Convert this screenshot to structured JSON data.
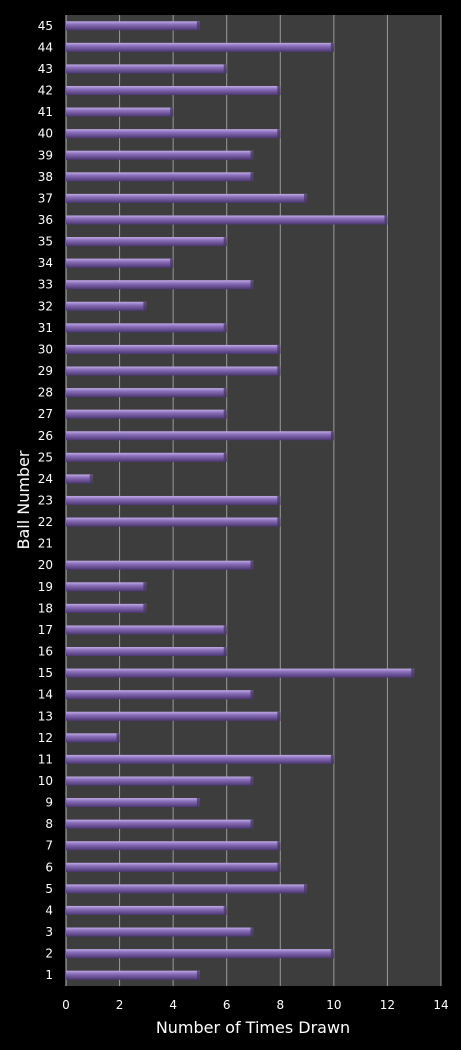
{
  "chart_data": {
    "type": "bar",
    "orientation": "horizontal",
    "xlabel": "Number of Times Drawn",
    "ylabel": "Ball Number",
    "xlim": [
      0,
      14
    ],
    "x_ticks": [
      "0",
      "2",
      "4",
      "6",
      "8",
      "10",
      "12",
      "14"
    ],
    "grid": true,
    "colors": {
      "background": "#000000",
      "plot_area": "#3d3d3d",
      "grid": "#9a9a9a",
      "bar_light": "#a78fd0",
      "bar_main": "#7a60a8",
      "bar_dark": "#4a3670",
      "text": "#ffffff"
    },
    "categories": [
      "1",
      "2",
      "3",
      "4",
      "5",
      "6",
      "7",
      "8",
      "9",
      "10",
      "11",
      "12",
      "13",
      "14",
      "15",
      "16",
      "17",
      "18",
      "19",
      "20",
      "21",
      "22",
      "23",
      "24",
      "25",
      "26",
      "27",
      "28",
      "29",
      "30",
      "31",
      "32",
      "33",
      "34",
      "35",
      "36",
      "37",
      "38",
      "39",
      "40",
      "41",
      "42",
      "43",
      "44",
      "45"
    ],
    "values": [
      5,
      10,
      7,
      6,
      9,
      8,
      8,
      7,
      5,
      7,
      10,
      2,
      8,
      7,
      13,
      6,
      6,
      3,
      3,
      7,
      0,
      8,
      8,
      1,
      6,
      10,
      6,
      6,
      8,
      8,
      6,
      3,
      7,
      4,
      6,
      12,
      9,
      7,
      7,
      8,
      4,
      8,
      6,
      10,
      5
    ]
  }
}
